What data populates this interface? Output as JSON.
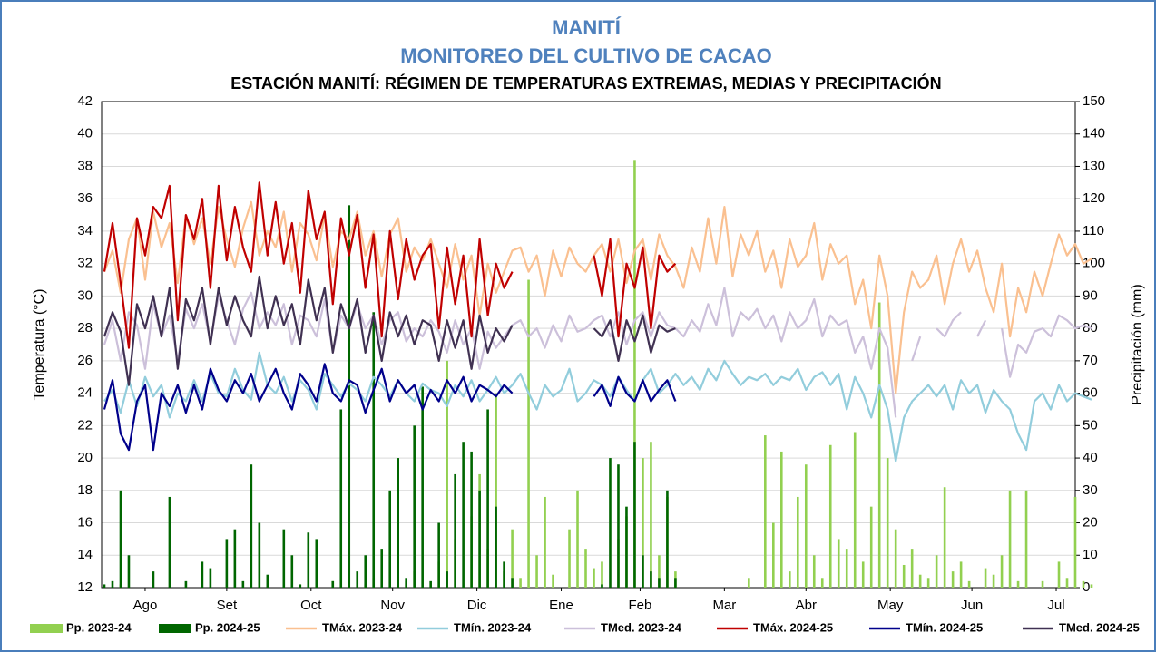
{
  "chart_data": {
    "type": "line",
    "title": "MANITÍ",
    "subtitle": "MONITOREO DEL CULTIVO DE CACAO",
    "chart_title": "ESTACIÓN MANITÍ: RÉGIMEN DE TEMPERATURAS EXTREMAS, MEDIAS Y PRECIPITACIÓN",
    "y_label": "Temperatura (°C)",
    "y2_label": "Precipitación (mm)",
    "ylim": [
      12,
      42
    ],
    "yticks": [
      12,
      14,
      16,
      18,
      20,
      22,
      24,
      26,
      28,
      30,
      32,
      34,
      36,
      38,
      40,
      42
    ],
    "y2lim": [
      0,
      150
    ],
    "y2ticks": [
      0,
      10,
      20,
      30,
      40,
      50,
      60,
      70,
      80,
      90,
      100,
      110,
      120,
      130,
      140,
      150
    ],
    "xlim": [
      -1,
      357
    ],
    "xticks": [
      {
        "value": 15,
        "label": "Ago"
      },
      {
        "value": 45,
        "label": "Set"
      },
      {
        "value": 76,
        "label": "Oct"
      },
      {
        "value": 106,
        "label": "Nov"
      },
      {
        "value": 137,
        "label": "Dic"
      },
      {
        "value": 168,
        "label": "Ene"
      },
      {
        "value": 197,
        "label": "Feb"
      },
      {
        "value": 228,
        "label": "Mar"
      },
      {
        "value": 258,
        "label": "Abr"
      },
      {
        "value": 289,
        "label": "May"
      },
      {
        "value": 319,
        "label": "Jun"
      },
      {
        "value": 350,
        "label": "Jul"
      }
    ],
    "grid": true,
    "legend": "bottom",
    "x": [
      0,
      3,
      6,
      9,
      12,
      15,
      18,
      21,
      24,
      27,
      30,
      33,
      36,
      39,
      42,
      45,
      48,
      51,
      54,
      57,
      60,
      63,
      66,
      69,
      72,
      75,
      78,
      81,
      84,
      87,
      90,
      93,
      96,
      99,
      102,
      105,
      108,
      111,
      114,
      117,
      120,
      123,
      126,
      129,
      132,
      135,
      138,
      141,
      144,
      147,
      150,
      153,
      156,
      159,
      162,
      165,
      168,
      171,
      174,
      177,
      180,
      183,
      186,
      189,
      192,
      195,
      198,
      201,
      204,
      207,
      210,
      213,
      216,
      219,
      222,
      225,
      228,
      231,
      234,
      237,
      240,
      243,
      246,
      249,
      252,
      255,
      258,
      261,
      264,
      267,
      270,
      273,
      276,
      279,
      282,
      285,
      288,
      291,
      294,
      297,
      300,
      303,
      306,
      309,
      312,
      315,
      318,
      321,
      324,
      327,
      330,
      333,
      336,
      339,
      342,
      345,
      348,
      351,
      354,
      357,
      360,
      363
    ],
    "series": [
      {
        "name": "Pp. 2023-24",
        "kind": "bar",
        "axis": "y2",
        "color": "#92d050",
        "values": [
          0,
          0,
          1,
          0,
          0,
          0,
          0,
          0,
          0,
          0,
          0,
          0,
          0,
          0,
          0,
          0,
          0,
          0,
          0,
          0,
          0,
          0,
          0,
          0,
          0,
          0,
          0,
          0,
          2,
          0,
          0,
          0,
          1,
          3,
          0,
          0,
          0,
          2,
          5,
          0,
          0,
          8,
          70,
          15,
          0,
          22,
          35,
          12,
          60,
          5,
          18,
          3,
          95,
          10,
          28,
          4,
          0,
          18,
          30,
          12,
          6,
          8,
          0,
          15,
          22,
          132,
          40,
          45,
          10,
          28,
          5,
          0,
          0,
          0,
          0,
          0,
          0,
          0,
          0,
          3,
          0,
          47,
          20,
          42,
          5,
          28,
          38,
          10,
          3,
          44,
          15,
          12,
          48,
          8,
          25,
          88,
          40,
          18,
          7,
          12,
          4,
          3,
          10,
          31,
          5,
          8,
          2,
          0,
          6,
          4,
          10,
          30,
          2,
          30,
          0,
          2,
          0,
          8,
          3,
          28,
          2,
          1
        ]
      },
      {
        "name": "Pp. 2024-25",
        "kind": "bar",
        "axis": "y2",
        "color": "#006600",
        "values": [
          1,
          2,
          30,
          10,
          0,
          0,
          5,
          0,
          28,
          0,
          2,
          0,
          8,
          6,
          0,
          15,
          18,
          2,
          38,
          20,
          4,
          0,
          18,
          10,
          1,
          17,
          15,
          0,
          2,
          55,
          118,
          5,
          10,
          85,
          12,
          30,
          40,
          3,
          50,
          62,
          2,
          20,
          5,
          35,
          45,
          42,
          30,
          55,
          25,
          8,
          3,
          0,
          0,
          0,
          0,
          0,
          0,
          0,
          0,
          0,
          0,
          1,
          40,
          38,
          25,
          45,
          10,
          5,
          3,
          30,
          3,
          0,
          0,
          0,
          0,
          0,
          0,
          0,
          0,
          0,
          0,
          0,
          0,
          0,
          0,
          0,
          0,
          0,
          0,
          0,
          0,
          0,
          0,
          0,
          0,
          0,
          0,
          0,
          0,
          0,
          0,
          0,
          0,
          0,
          0,
          0,
          0,
          0,
          0,
          0,
          0,
          0,
          0,
          0,
          0,
          0,
          0,
          0,
          0,
          0,
          0,
          0
        ]
      },
      {
        "name": "TMáx. 2023-24",
        "kind": "line",
        "color": "#fac090",
        "values": [
          31.5,
          32.8,
          30.2,
          33.5,
          34.8,
          31.0,
          35.2,
          33.0,
          34.5,
          30.8,
          35.0,
          33.2,
          34.8,
          32.0,
          35.5,
          33.5,
          31.8,
          34.2,
          35.8,
          32.5,
          34.0,
          33.0,
          35.2,
          31.5,
          34.5,
          33.8,
          32.2,
          35.0,
          31.8,
          34.0,
          33.5,
          35.2,
          32.5,
          34.0,
          31.2,
          33.8,
          34.8,
          31.5,
          33.0,
          32.2,
          33.5,
          32.0,
          30.5,
          33.2,
          31.0,
          32.5,
          28.8,
          32.0,
          30.2,
          31.5,
          32.8,
          33.0,
          31.5,
          32.5,
          30.0,
          32.8,
          31.2,
          33.0,
          32.0,
          31.5,
          32.5,
          33.2,
          31.5,
          33.5,
          30.8,
          32.8,
          33.5,
          31.0,
          33.8,
          32.5,
          31.8,
          30.5,
          33.0,
          31.5,
          34.8,
          32.0,
          35.5,
          31.2,
          33.8,
          32.5,
          34.0,
          31.5,
          32.8,
          30.5,
          33.5,
          31.8,
          32.5,
          34.5,
          31.0,
          33.2,
          32.0,
          32.5,
          29.5,
          31.0,
          28.0,
          32.5,
          30.0,
          24.0,
          29.0,
          31.5,
          30.5,
          31.0,
          32.5,
          29.5,
          32.0,
          33.5,
          31.5,
          32.8,
          30.5,
          29.0,
          32.0,
          27.5,
          30.5,
          29.0,
          31.5,
          30.0,
          32.0,
          33.8,
          32.5,
          33.2,
          32.0,
          32.3
        ]
      },
      {
        "name": "TMín. 2023-24",
        "kind": "line",
        "color": "#92cddc",
        "values": [
          23.5,
          24.2,
          22.8,
          24.8,
          23.2,
          25.0,
          23.8,
          24.5,
          22.5,
          24.0,
          23.5,
          24.8,
          23.5,
          25.2,
          24.0,
          23.8,
          25.5,
          24.2,
          23.6,
          26.5,
          24.5,
          24.0,
          25.0,
          23.5,
          24.8,
          24.2,
          23.0,
          25.2,
          24.5,
          23.8,
          24.6,
          24.2,
          23.5,
          25.0,
          24.5,
          23.8,
          24.8,
          24.0,
          23.5,
          24.6,
          24.2,
          24.0,
          23.2,
          24.5,
          23.8,
          24.8,
          23.5,
          24.2,
          25.0,
          24.0,
          24.5,
          25.2,
          24.0,
          23.0,
          24.5,
          23.8,
          24.2,
          25.5,
          23.5,
          24.0,
          24.8,
          24.5,
          23.8,
          25.0,
          24.2,
          23.5,
          24.8,
          25.5,
          24.0,
          24.5,
          25.2,
          24.5,
          25.0,
          24.2,
          25.5,
          24.8,
          26.0,
          25.2,
          24.5,
          25.0,
          24.8,
          25.2,
          24.5,
          25.0,
          24.8,
          25.5,
          24.2,
          25.0,
          25.3,
          24.5,
          25.2,
          23.0,
          25.0,
          24.0,
          22.5,
          24.5,
          23.0,
          19.8,
          22.5,
          23.5,
          24.0,
          24.5,
          23.8,
          24.5,
          23.0,
          24.8,
          24.0,
          24.5,
          22.8,
          24.2,
          23.5,
          23.0,
          21.5,
          20.5,
          23.5,
          24.0,
          23.0,
          24.5,
          23.5,
          24.0,
          23.8,
          23.6
        ]
      },
      {
        "name": "TMed. 2023-24",
        "kind": "line",
        "color": "#ccc0da",
        "values": [
          27.0,
          28.5,
          26.0,
          29.0,
          28.2,
          25.5,
          29.5,
          27.5,
          28.8,
          26.0,
          29.2,
          28.0,
          29.5,
          27.2,
          30.0,
          28.5,
          27.0,
          29.2,
          30.2,
          28.0,
          29.0,
          28.2,
          29.5,
          27.0,
          28.8,
          28.5,
          27.5,
          29.8,
          26.5,
          28.8,
          28.0,
          29.5,
          28.0,
          28.8,
          27.0,
          28.5,
          29.0,
          27.2,
          28.0,
          27.5,
          28.5,
          27.8,
          26.5,
          28.5,
          27.0,
          28.0,
          25.5,
          27.8,
          26.8,
          27.5,
          28.2,
          28.5,
          27.5,
          28.0,
          26.8,
          28.2,
          27.2,
          28.8,
          27.8,
          28.0,
          28.5,
          28.8,
          27.5,
          29.0,
          27.0,
          28.5,
          29.0,
          27.5,
          29.0,
          28.2,
          28.0,
          27.5,
          28.5,
          27.8,
          29.5,
          28.2,
          30.5,
          27.5,
          29.0,
          28.5,
          29.2,
          28.0,
          28.8,
          27.2,
          29.0,
          28.0,
          28.5,
          29.8,
          27.5,
          28.8,
          28.2,
          28.5,
          26.5,
          27.5,
          25.5,
          28.0,
          26.8,
          22.5,
          null,
          26.0,
          27.5,
          null,
          28.0,
          27.5,
          28.5,
          29.0,
          null,
          27.5,
          28.5,
          null,
          28.0,
          25.0,
          27.0,
          26.5,
          27.8,
          28.0,
          27.5,
          28.8,
          28.5,
          28.0,
          28.2,
          28.0
        ]
      },
      {
        "name": "TMáx. 2024-25",
        "kind": "line",
        "color": "#c00000",
        "values": [
          31.5,
          34.5,
          30.8,
          26.8,
          34.8,
          32.5,
          35.5,
          34.8,
          36.8,
          28.5,
          35.0,
          33.5,
          36.0,
          30.5,
          36.8,
          32.2,
          35.5,
          33.0,
          31.5,
          37.0,
          32.5,
          35.8,
          32.0,
          34.5,
          30.2,
          36.5,
          33.5,
          35.2,
          29.5,
          34.8,
          32.5,
          35.0,
          30.5,
          33.8,
          27.5,
          34.0,
          29.8,
          33.5,
          31.0,
          32.5,
          33.2,
          28.0,
          33.0,
          29.5,
          32.5,
          27.5,
          33.5,
          28.8,
          32.0,
          30.5,
          31.5,
          null,
          null,
          null,
          null,
          null,
          null,
          null,
          null,
          null,
          32.5,
          30.0,
          33.5,
          27.5,
          32.0,
          30.5,
          33.0,
          28.0,
          32.5,
          31.5,
          32.0,
          null,
          null,
          null,
          null,
          null,
          null,
          null,
          null,
          null,
          null,
          null,
          null,
          null,
          null,
          null,
          null,
          null,
          null,
          null,
          null,
          null,
          null,
          null,
          null,
          null,
          null,
          null,
          null,
          null,
          null,
          null,
          null,
          null,
          null,
          null,
          null,
          null,
          null,
          null,
          null,
          null,
          null,
          null,
          null,
          null,
          null,
          null,
          null,
          null,
          null,
          null
        ]
      },
      {
        "name": "TMín. 2024-25",
        "kind": "line",
        "color": "#00008b",
        "values": [
          23.0,
          24.8,
          21.5,
          20.5,
          23.5,
          24.5,
          20.5,
          24.0,
          23.2,
          24.5,
          22.8,
          24.5,
          23.0,
          25.5,
          24.2,
          23.5,
          24.8,
          24.0,
          25.2,
          23.5,
          24.5,
          25.5,
          24.0,
          23.0,
          25.2,
          24.5,
          23.5,
          25.8,
          24.0,
          23.5,
          24.8,
          24.5,
          22.8,
          24.2,
          25.5,
          23.5,
          24.8,
          24.0,
          24.5,
          23.0,
          24.2,
          23.5,
          24.8,
          24.0,
          25.0,
          23.5,
          24.5,
          24.2,
          23.8,
          24.5,
          24.0,
          null,
          null,
          null,
          null,
          null,
          null,
          null,
          null,
          null,
          23.8,
          24.5,
          23.2,
          25.0,
          24.0,
          23.5,
          24.8,
          23.5,
          24.2,
          24.8,
          23.5,
          null,
          null,
          null,
          null,
          null,
          null,
          null,
          null,
          null,
          null,
          null,
          null,
          null,
          null,
          null,
          null,
          null,
          null,
          null,
          null,
          null,
          null,
          null,
          null,
          null,
          null,
          null,
          null,
          null,
          null,
          null,
          null,
          null,
          null,
          null,
          null,
          null,
          null,
          null,
          null,
          null,
          null,
          null,
          null,
          null,
          null,
          null,
          null,
          null,
          null,
          null
        ]
      },
      {
        "name": "TMed. 2024-25",
        "kind": "line",
        "color": "#403152",
        "values": [
          27.5,
          29.0,
          27.8,
          24.5,
          29.5,
          28.0,
          30.0,
          27.5,
          30.5,
          25.5,
          29.8,
          28.5,
          30.5,
          27.0,
          30.5,
          28.2,
          30.0,
          28.5,
          27.5,
          31.2,
          28.0,
          30.0,
          28.2,
          29.5,
          27.0,
          31.0,
          28.5,
          30.5,
          26.5,
          29.5,
          28.0,
          29.8,
          26.5,
          28.8,
          26.0,
          29.0,
          27.5,
          28.8,
          27.0,
          28.5,
          28.2,
          26.0,
          28.5,
          26.8,
          28.5,
          25.5,
          28.8,
          26.5,
          28.0,
          27.2,
          28.2,
          null,
          null,
          null,
          null,
          null,
          null,
          null,
          null,
          null,
          28.0,
          27.5,
          28.5,
          26.0,
          28.5,
          27.2,
          28.8,
          26.5,
          28.2,
          27.8,
          28.0,
          null,
          null,
          null,
          null,
          null,
          null,
          null,
          null,
          null,
          null,
          null,
          null,
          null,
          null,
          null,
          null,
          null,
          null,
          null,
          null,
          null,
          null,
          null,
          null,
          null,
          null,
          null,
          null,
          null,
          null,
          null,
          null,
          null,
          null,
          null,
          null,
          null,
          null,
          null,
          null,
          null,
          null,
          null,
          null,
          null,
          null,
          null,
          null,
          null,
          null,
          null
        ]
      }
    ]
  }
}
